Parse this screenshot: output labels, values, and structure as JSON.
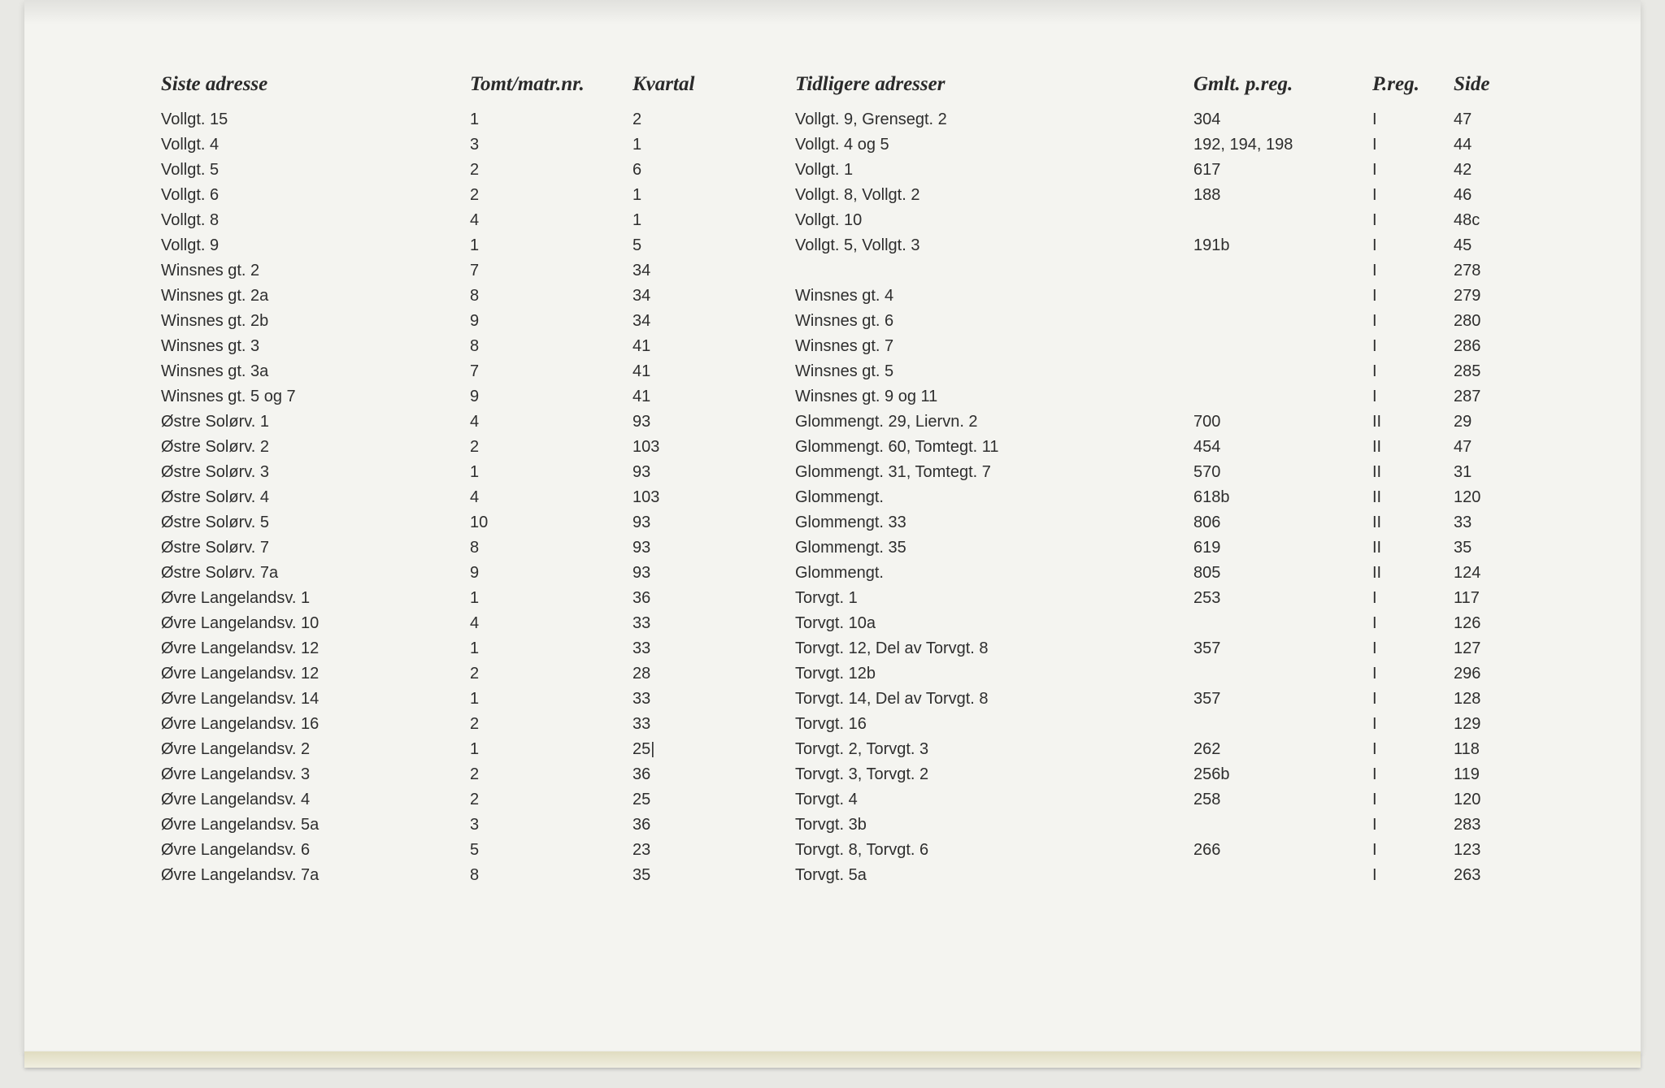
{
  "table": {
    "columns": [
      {
        "key": "siste",
        "label": "Siste adresse"
      },
      {
        "key": "tomt",
        "label": "Tomt/matr.nr."
      },
      {
        "key": "kvartal",
        "label": "Kvartal"
      },
      {
        "key": "tidligere",
        "label": "Tidligere adresser"
      },
      {
        "key": "gmlt",
        "label": "Gmlt. p.reg."
      },
      {
        "key": "preg",
        "label": "P.reg."
      },
      {
        "key": "side",
        "label": "Side"
      }
    ],
    "rows": [
      [
        "Vollgt. 15",
        "1",
        "2",
        "Vollgt. 9, Grensegt. 2",
        "304",
        "I",
        "47"
      ],
      [
        "Vollgt. 4",
        "3",
        "1",
        "Vollgt. 4 og 5",
        "192, 194, 198",
        "I",
        "44"
      ],
      [
        "Vollgt. 5",
        "2",
        "6",
        "Vollgt. 1",
        "617",
        "I",
        "42"
      ],
      [
        "Vollgt. 6",
        "2",
        "1",
        "Vollgt. 8, Vollgt. 2",
        "188",
        "I",
        "46"
      ],
      [
        "Vollgt. 8",
        "4",
        "1",
        "Vollgt. 10",
        "",
        "I",
        "48c"
      ],
      [
        "Vollgt. 9",
        "1",
        "5",
        "Vollgt. 5, Vollgt. 3",
        "191b",
        "I",
        "45"
      ],
      [
        "Winsnes gt. 2",
        "7",
        "34",
        "",
        "",
        "I",
        "278"
      ],
      [
        "Winsnes gt. 2a",
        "8",
        "34",
        "Winsnes gt. 4",
        "",
        "I",
        "279"
      ],
      [
        "Winsnes gt. 2b",
        "9",
        "34",
        "Winsnes gt. 6",
        "",
        "I",
        "280"
      ],
      [
        "Winsnes gt. 3",
        "8",
        "41",
        "Winsnes gt. 7",
        "",
        "I",
        "286"
      ],
      [
        "Winsnes gt. 3a",
        "7",
        "41",
        "Winsnes gt. 5",
        "",
        "I",
        "285"
      ],
      [
        "Winsnes gt. 5 og 7",
        "9",
        "41",
        "Winsnes gt. 9 og 11",
        "",
        "I",
        "287"
      ],
      [
        "Østre Solørv. 1",
        "4",
        "93",
        "Glommengt. 29, Liervn. 2",
        "700",
        "II",
        "29"
      ],
      [
        "Østre Solørv. 2",
        "2",
        "103",
        "Glommengt. 60, Tomtegt. 11",
        "454",
        "II",
        "47"
      ],
      [
        "Østre Solørv. 3",
        "1",
        "93",
        "Glommengt. 31, Tomtegt. 7",
        "570",
        "II",
        "31"
      ],
      [
        "Østre Solørv. 4",
        "4",
        "103",
        "Glommengt.",
        "618b",
        "II",
        "120"
      ],
      [
        "Østre Solørv. 5",
        "10",
        "93",
        "Glommengt. 33",
        "806",
        "II",
        "33"
      ],
      [
        "Østre Solørv. 7",
        "8",
        "93",
        "Glommengt. 35",
        "619",
        "II",
        "35"
      ],
      [
        "Østre Solørv. 7a",
        "9",
        "93",
        "Glommengt.",
        "805",
        "II",
        "124"
      ],
      [
        "Øvre Langelandsv. 1",
        "1",
        "36",
        "Torvgt. 1",
        "253",
        "I",
        "117"
      ],
      [
        "Øvre Langelandsv. 10",
        "4",
        "33",
        "Torvgt. 10a",
        "",
        "I",
        "126"
      ],
      [
        "Øvre Langelandsv. 12",
        "1",
        "33",
        "Torvgt. 12, Del av Torvgt. 8",
        "357",
        "I",
        "127"
      ],
      [
        "Øvre Langelandsv. 12",
        "2",
        "28",
        "Torvgt. 12b",
        "",
        "I",
        "296"
      ],
      [
        "Øvre Langelandsv. 14",
        "1",
        "33",
        "Torvgt. 14, Del av Torvgt. 8",
        "357",
        "I",
        "128"
      ],
      [
        "Øvre Langelandsv. 16",
        "2",
        "33",
        "Torvgt. 16",
        "",
        "I",
        "129"
      ],
      [
        "Øvre Langelandsv. 2",
        "1",
        "25|",
        "Torvgt. 2, Torvgt. 3",
        "262",
        "I",
        "118"
      ],
      [
        "Øvre Langelandsv. 3",
        "2",
        "36",
        "Torvgt. 3, Torvgt. 2",
        "256b",
        "I",
        "119"
      ],
      [
        "Øvre Langelandsv. 4",
        "2",
        "25",
        "Torvgt. 4",
        "258",
        "I",
        "120"
      ],
      [
        "Øvre Langelandsv. 5a",
        "3",
        "36",
        "Torvgt. 3b",
        "",
        "I",
        "283"
      ],
      [
        "Øvre Langelandsv. 6",
        "5",
        "23",
        "Torvgt. 8, Torvgt. 6",
        "266",
        "I",
        "123"
      ],
      [
        "Øvre Langelandsv. 7a",
        "8",
        "35",
        "Torvgt. 5a",
        "",
        "I",
        "263"
      ]
    ]
  },
  "style": {
    "header_font": "Times New Roman italic bold",
    "header_fontsize_pt": 19,
    "body_font": "Arial",
    "body_fontsize_pt": 15,
    "text_color": "#2e2e2e",
    "paper_bg": "#f4f4f0",
    "outer_bg": "#1a1a1a"
  }
}
